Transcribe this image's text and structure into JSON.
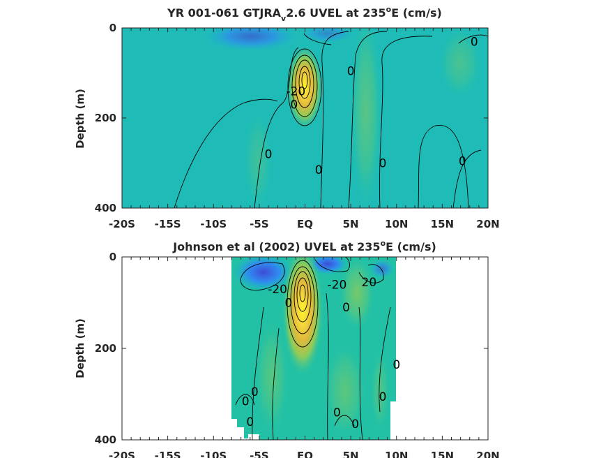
{
  "chart_data": [
    {
      "type": "heatmap",
      "title_main": "YR 001-061 GTJRA",
      "title_sub": "v",
      "title_rest": "2.6 UVEL at 235",
      "title_sup": "o",
      "title_end": "E (cm/s)",
      "ylabel": "Depth (m)",
      "xlim": [
        -20,
        20
      ],
      "ylim": [
        400,
        0
      ],
      "y_reversed": true,
      "x_ticks": [
        -20,
        -15,
        -10,
        -5,
        0,
        5,
        10,
        15,
        20
      ],
      "x_tick_labels": [
        "-20S",
        "-15S",
        "-10S",
        "-5S",
        "EQ",
        "5N",
        "10N",
        "15N",
        "20N"
      ],
      "y_ticks": [
        0,
        200,
        400
      ],
      "y_tick_labels": [
        "0",
        "200",
        "400"
      ],
      "data_coverage": {
        "lat_min": -20,
        "lat_max": 20
      },
      "colormap": [
        "#3e4cd6",
        "#2f8cf0",
        "#19b7c8",
        "#22c1a6",
        "#8ccc5a",
        "#e0b93b",
        "#f6d83b",
        "#fbf428"
      ],
      "undercurrent_core": {
        "lat": 0,
        "depth": 110,
        "max_cmps": 100
      },
      "contour_labels": [
        {
          "text": "0",
          "lat": 18.5,
          "depth": 30
        },
        {
          "text": "0",
          "lat": 5,
          "depth": 95
        },
        {
          "text": "-20",
          "lat": -1,
          "depth": 140
        },
        {
          "text": "0",
          "lat": -4,
          "depth": 280
        },
        {
          "text": "0",
          "lat": 1.5,
          "depth": 315
        },
        {
          "text": "0",
          "lat": 8.5,
          "depth": 300
        },
        {
          "text": "0",
          "lat": 17.2,
          "depth": 295
        },
        {
          "text": "0",
          "lat": -1.2,
          "depth": 170
        }
      ]
    },
    {
      "type": "heatmap",
      "title_main": "Johnson et al (2002) UVEL at 235",
      "title_sup": "o",
      "title_end": "E (cm/s)",
      "ylabel": "Depth (m)",
      "xlim": [
        -20,
        20
      ],
      "ylim": [
        400,
        0
      ],
      "y_reversed": true,
      "x_ticks": [
        -20,
        -15,
        -10,
        -5,
        0,
        5,
        10,
        15,
        20
      ],
      "x_tick_labels": [
        "-20S",
        "-15S",
        "-10S",
        "-5S",
        "EQ",
        "5N",
        "10N",
        "15N",
        "20N"
      ],
      "y_ticks": [
        0,
        200,
        400
      ],
      "y_tick_labels": [
        "0",
        "200",
        "400"
      ],
      "data_coverage": {
        "lat_min": -8,
        "lat_max": 10
      },
      "colormap": [
        "#3e4cd6",
        "#2f8cf0",
        "#19b7c8",
        "#22c1a6",
        "#8ccc5a",
        "#e0b93b",
        "#f6d83b",
        "#fbf428"
      ],
      "undercurrent_core": {
        "lat": 0,
        "depth": 90,
        "max_cmps": 100
      },
      "contour_labels": [
        {
          "text": "-20",
          "lat": -3,
          "depth": 70
        },
        {
          "text": "-20",
          "lat": 3.5,
          "depth": 60
        },
        {
          "text": "20",
          "lat": 7,
          "depth": 55
        },
        {
          "text": "0",
          "lat": 4.5,
          "depth": 110
        },
        {
          "text": "0",
          "lat": -1.8,
          "depth": 100
        },
        {
          "text": "0",
          "lat": 10,
          "depth": 235
        },
        {
          "text": "0",
          "lat": -6.5,
          "depth": 315
        },
        {
          "text": "0",
          "lat": -5.5,
          "depth": 295
        },
        {
          "text": "0",
          "lat": 8.5,
          "depth": 305
        },
        {
          "text": "0",
          "lat": 3.5,
          "depth": 340
        },
        {
          "text": "0",
          "lat": -6,
          "depth": 360
        },
        {
          "text": "0",
          "lat": 5.5,
          "depth": 365
        }
      ]
    }
  ]
}
